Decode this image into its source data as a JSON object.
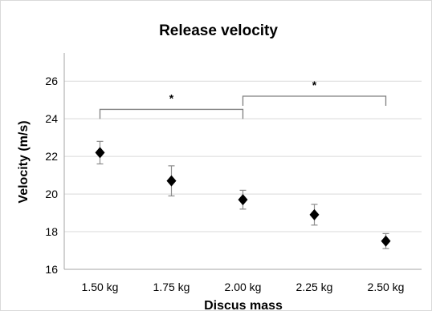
{
  "chart_data": {
    "type": "scatter",
    "title": "Release velocity",
    "xlabel": "Discus mass",
    "ylabel": "Velocity (m/s)",
    "categories": [
      "1.50 kg",
      "1.75 kg",
      "2.00 kg",
      "2.25 kg",
      "2.50 kg"
    ],
    "ylim": [
      16,
      27.5
    ],
    "yticks": [
      "16",
      "18",
      "20",
      "22",
      "24",
      "26"
    ],
    "grid": true,
    "legend": "none",
    "series": [
      {
        "values": [
          22.2,
          20.7,
          19.7,
          18.9,
          17.5
        ],
        "errors": [
          0.6,
          0.8,
          0.5,
          0.55,
          0.4
        ]
      }
    ],
    "annotations": [
      {
        "type": "bracket",
        "from": "1.50 kg",
        "to": "2.00 kg",
        "y": 24.5,
        "label": "*"
      },
      {
        "type": "bracket",
        "from": "2.00 kg",
        "to": "2.50 kg",
        "y": 25.2,
        "label": "*"
      }
    ],
    "colors": {
      "marker": "#000000",
      "errorbar": "#8c8c8c",
      "grid": "#d9d9d9",
      "axis": "#a6a6a6"
    }
  }
}
